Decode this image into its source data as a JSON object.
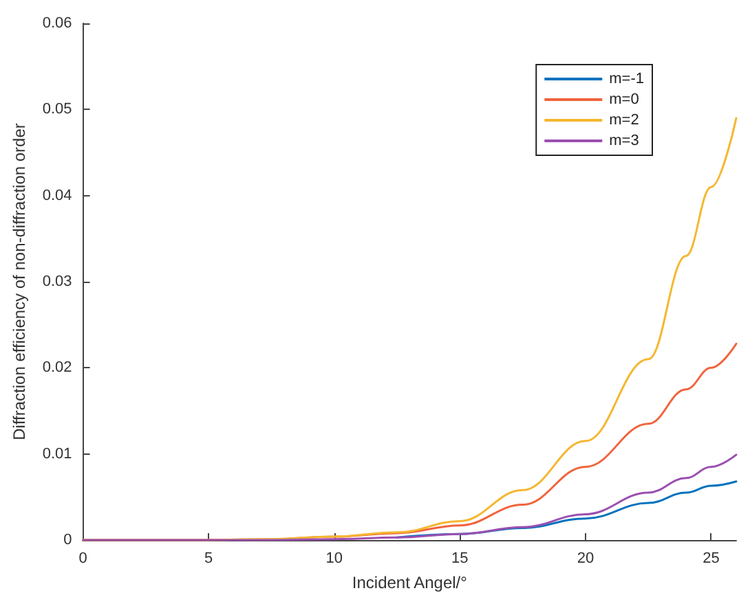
{
  "chart_data": {
    "type": "line",
    "xlabel": "Incident Angel/°",
    "ylabel": "Diffraction efficiency of non-diffraction order",
    "x": [
      0,
      5,
      7.5,
      10,
      12.5,
      15,
      17.5,
      20,
      22.5,
      24,
      25,
      26
    ],
    "series": [
      {
        "name": "m=-1",
        "color": "#0072bd",
        "values": [
          null,
          null,
          null,
          null,
          0.0003,
          0.0007,
          0.0014,
          0.0025,
          0.0043,
          0.0055,
          0.0063,
          0.0068
        ]
      },
      {
        "name": "m=0",
        "color": "#f0643c",
        "values": [
          0,
          0,
          0.0001,
          0.0004,
          0.0008,
          0.0017,
          0.0041,
          0.0085,
          0.0135,
          0.0175,
          0.02,
          0.0228
        ]
      },
      {
        "name": "m=2",
        "color": "#f5b731",
        "values": [
          0,
          0,
          0.0001,
          0.0004,
          0.0009,
          0.0022,
          0.0058,
          0.0115,
          0.021,
          0.033,
          0.041,
          0.049
        ]
      },
      {
        "name": "m=3",
        "color": "#9b4fb0",
        "values": [
          0,
          0,
          0,
          0.0001,
          0.0003,
          0.0007,
          0.0015,
          0.003,
          0.0055,
          0.0072,
          0.0085,
          0.0099
        ]
      }
    ],
    "xlim": [
      0,
      26
    ],
    "xticks": [
      0,
      5,
      10,
      15,
      20,
      25
    ],
    "ylim": [
      0,
      0.06
    ],
    "yticks": [
      0,
      0.01,
      0.02,
      0.03,
      0.04,
      0.05,
      0.06
    ],
    "grid": false,
    "legend": "top right",
    "marker": "none",
    "line_style": "solid"
  }
}
